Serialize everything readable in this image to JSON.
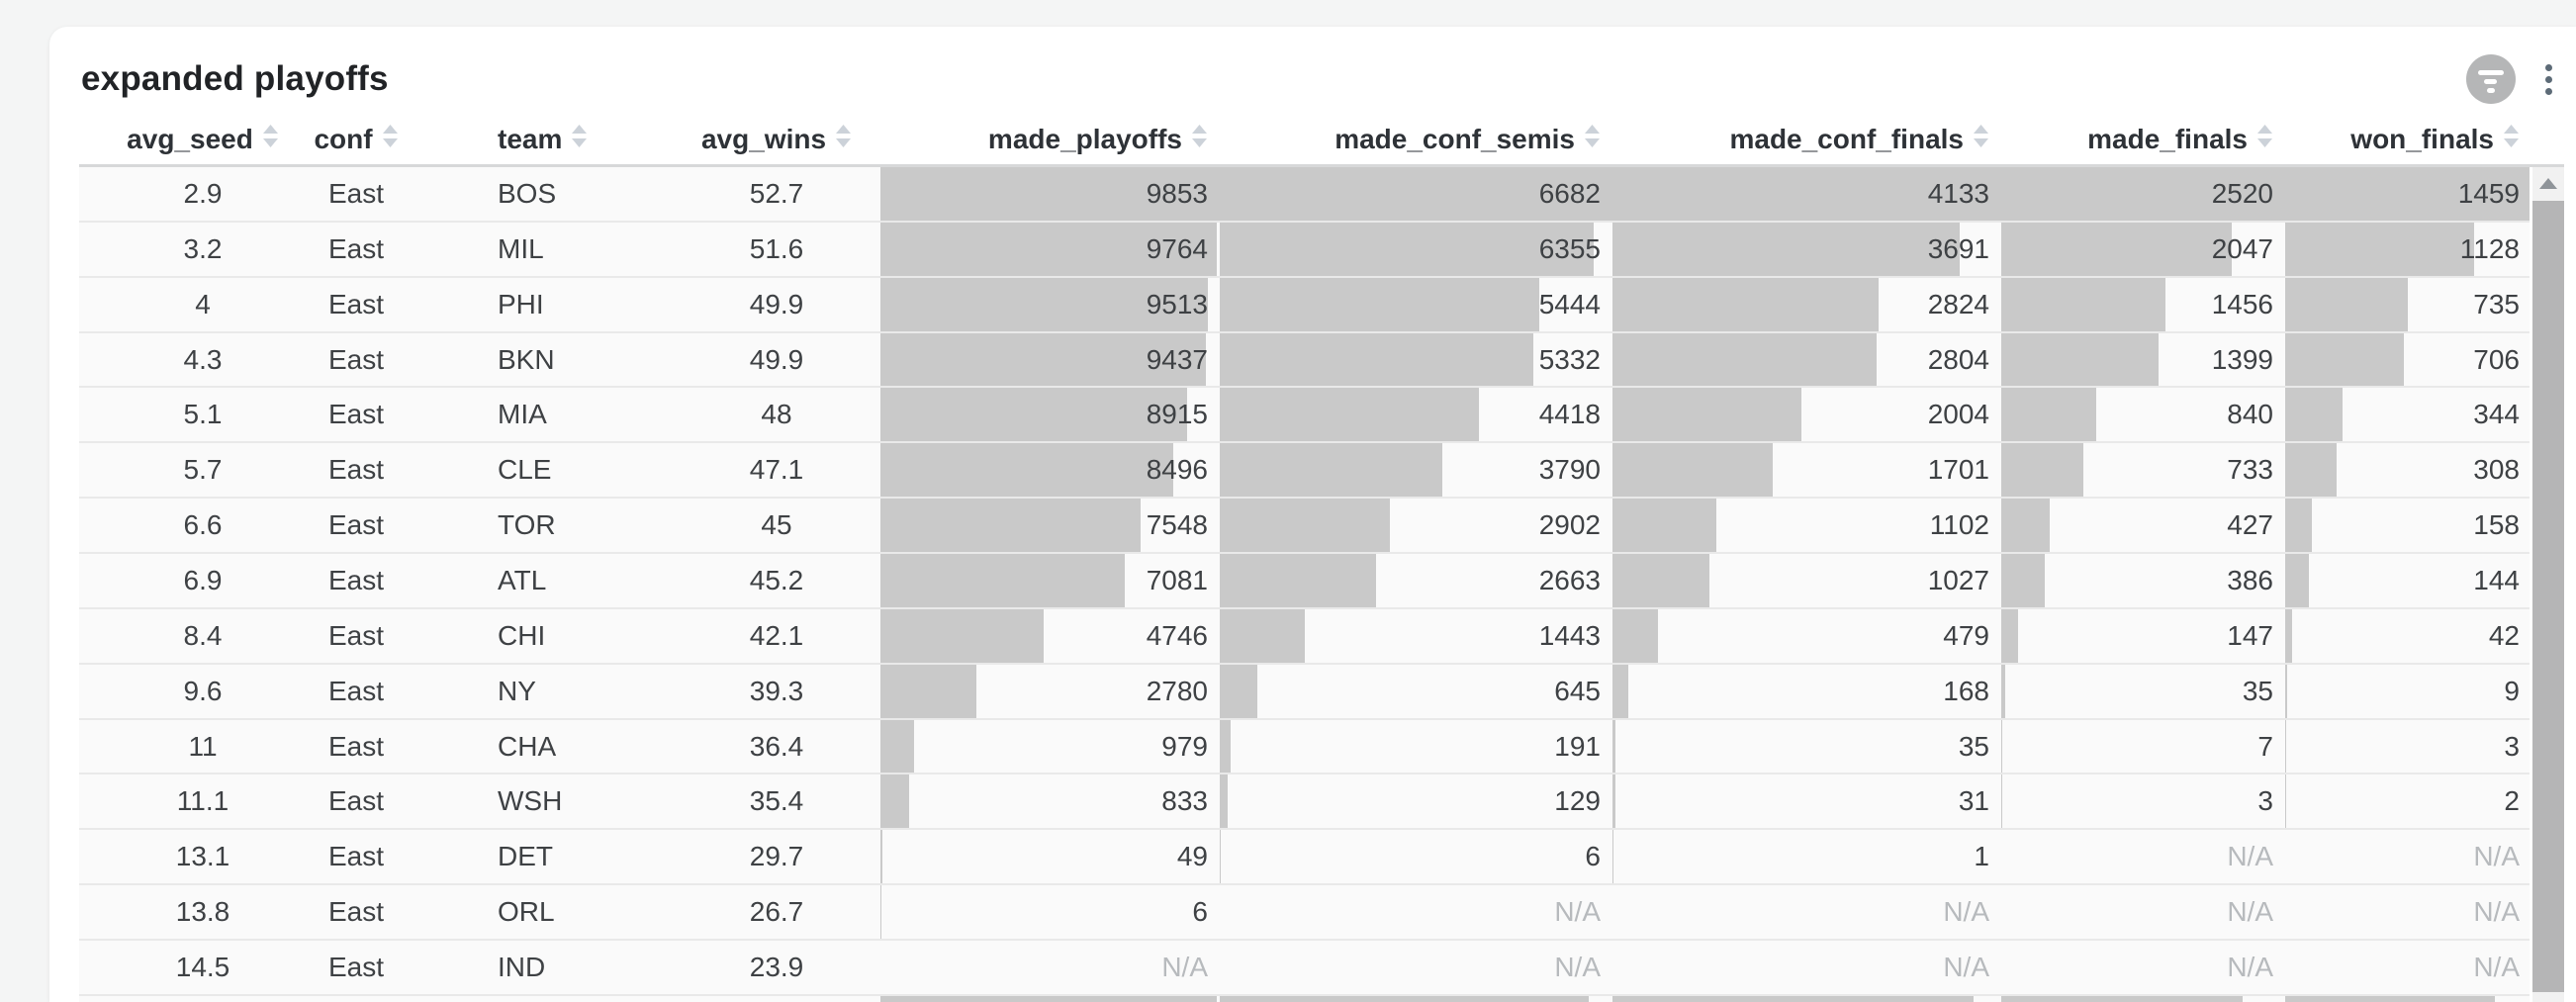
{
  "card": {
    "title": "expanded playoffs"
  },
  "actions": {
    "filter_icon": "filter-lines-circle-icon",
    "menu_icon": "kebab-vertical-icon"
  },
  "icons": {
    "sort": "sort-arrows-icon",
    "scroll_up": "scroll-up-arrow-icon"
  },
  "colors": {
    "bar": "#c9c9c9",
    "filter_button_bg": "#b5b6b7",
    "kebab_dot": "#5d6b77",
    "na_text": "#b7babd",
    "scroll_thumb": "#b5b5b6"
  },
  "table": {
    "na_text": "N/A",
    "columns": [
      {
        "key": "avg_seed",
        "label": "avg_seed",
        "type": "number"
      },
      {
        "key": "conf",
        "label": "conf",
        "type": "text"
      },
      {
        "key": "team",
        "label": "team",
        "type": "text"
      },
      {
        "key": "avg_wins",
        "label": "avg_wins",
        "type": "number"
      },
      {
        "key": "made_playoffs",
        "label": "made_playoffs",
        "type": "bar",
        "max": 9853
      },
      {
        "key": "made_conf_semis",
        "label": "made_conf_semis",
        "type": "bar",
        "max": 6682
      },
      {
        "key": "made_conf_finals",
        "label": "made_conf_finals",
        "type": "bar",
        "max": 4133
      },
      {
        "key": "made_finals",
        "label": "made_finals",
        "type": "bar",
        "max": 2520
      },
      {
        "key": "won_finals",
        "label": "won_finals",
        "type": "bar",
        "max": 1459
      }
    ],
    "rows": [
      {
        "avg_seed": "2.9",
        "conf": "East",
        "team": "BOS",
        "avg_wins": "52.7",
        "made_playoffs": 9853,
        "made_conf_semis": 6682,
        "made_conf_finals": 4133,
        "made_finals": 2520,
        "won_finals": 1459
      },
      {
        "avg_seed": "3.2",
        "conf": "East",
        "team": "MIL",
        "avg_wins": "51.6",
        "made_playoffs": 9764,
        "made_conf_semis": 6355,
        "made_conf_finals": 3691,
        "made_finals": 2047,
        "won_finals": 1128
      },
      {
        "avg_seed": "4",
        "conf": "East",
        "team": "PHI",
        "avg_wins": "49.9",
        "made_playoffs": 9513,
        "made_conf_semis": 5444,
        "made_conf_finals": 2824,
        "made_finals": 1456,
        "won_finals": 735
      },
      {
        "avg_seed": "4.3",
        "conf": "East",
        "team": "BKN",
        "avg_wins": "49.9",
        "made_playoffs": 9437,
        "made_conf_semis": 5332,
        "made_conf_finals": 2804,
        "made_finals": 1399,
        "won_finals": 706
      },
      {
        "avg_seed": "5.1",
        "conf": "East",
        "team": "MIA",
        "avg_wins": "48",
        "made_playoffs": 8915,
        "made_conf_semis": 4418,
        "made_conf_finals": 2004,
        "made_finals": 840,
        "won_finals": 344
      },
      {
        "avg_seed": "5.7",
        "conf": "East",
        "team": "CLE",
        "avg_wins": "47.1",
        "made_playoffs": 8496,
        "made_conf_semis": 3790,
        "made_conf_finals": 1701,
        "made_finals": 733,
        "won_finals": 308
      },
      {
        "avg_seed": "6.6",
        "conf": "East",
        "team": "TOR",
        "avg_wins": "45",
        "made_playoffs": 7548,
        "made_conf_semis": 2902,
        "made_conf_finals": 1102,
        "made_finals": 427,
        "won_finals": 158
      },
      {
        "avg_seed": "6.9",
        "conf": "East",
        "team": "ATL",
        "avg_wins": "45.2",
        "made_playoffs": 7081,
        "made_conf_semis": 2663,
        "made_conf_finals": 1027,
        "made_finals": 386,
        "won_finals": 144
      },
      {
        "avg_seed": "8.4",
        "conf": "East",
        "team": "CHI",
        "avg_wins": "42.1",
        "made_playoffs": 4746,
        "made_conf_semis": 1443,
        "made_conf_finals": 479,
        "made_finals": 147,
        "won_finals": 42
      },
      {
        "avg_seed": "9.6",
        "conf": "East",
        "team": "NY",
        "avg_wins": "39.3",
        "made_playoffs": 2780,
        "made_conf_semis": 645,
        "made_conf_finals": 168,
        "made_finals": 35,
        "won_finals": 9
      },
      {
        "avg_seed": "11",
        "conf": "East",
        "team": "CHA",
        "avg_wins": "36.4",
        "made_playoffs": 979,
        "made_conf_semis": 191,
        "made_conf_finals": 35,
        "made_finals": 7,
        "won_finals": 3
      },
      {
        "avg_seed": "11.1",
        "conf": "East",
        "team": "WSH",
        "avg_wins": "35.4",
        "made_playoffs": 833,
        "made_conf_semis": 129,
        "made_conf_finals": 31,
        "made_finals": 3,
        "won_finals": 2
      },
      {
        "avg_seed": "13.1",
        "conf": "East",
        "team": "DET",
        "avg_wins": "29.7",
        "made_playoffs": 49,
        "made_conf_semis": 6,
        "made_conf_finals": 1,
        "made_finals": null,
        "won_finals": null
      },
      {
        "avg_seed": "13.8",
        "conf": "East",
        "team": "ORL",
        "avg_wins": "26.7",
        "made_playoffs": 6,
        "made_conf_semis": null,
        "made_conf_finals": null,
        "made_finals": null,
        "won_finals": null
      },
      {
        "avg_seed": "14.5",
        "conf": "East",
        "team": "IND",
        "avg_wins": "23.9",
        "made_playoffs": null,
        "made_conf_semis": null,
        "made_conf_finals": null,
        "made_finals": null,
        "won_finals": null
      }
    ],
    "partial_row_bar_fractions": [
      0.99,
      0.94,
      0.93,
      0.85,
      0.86
    ]
  }
}
